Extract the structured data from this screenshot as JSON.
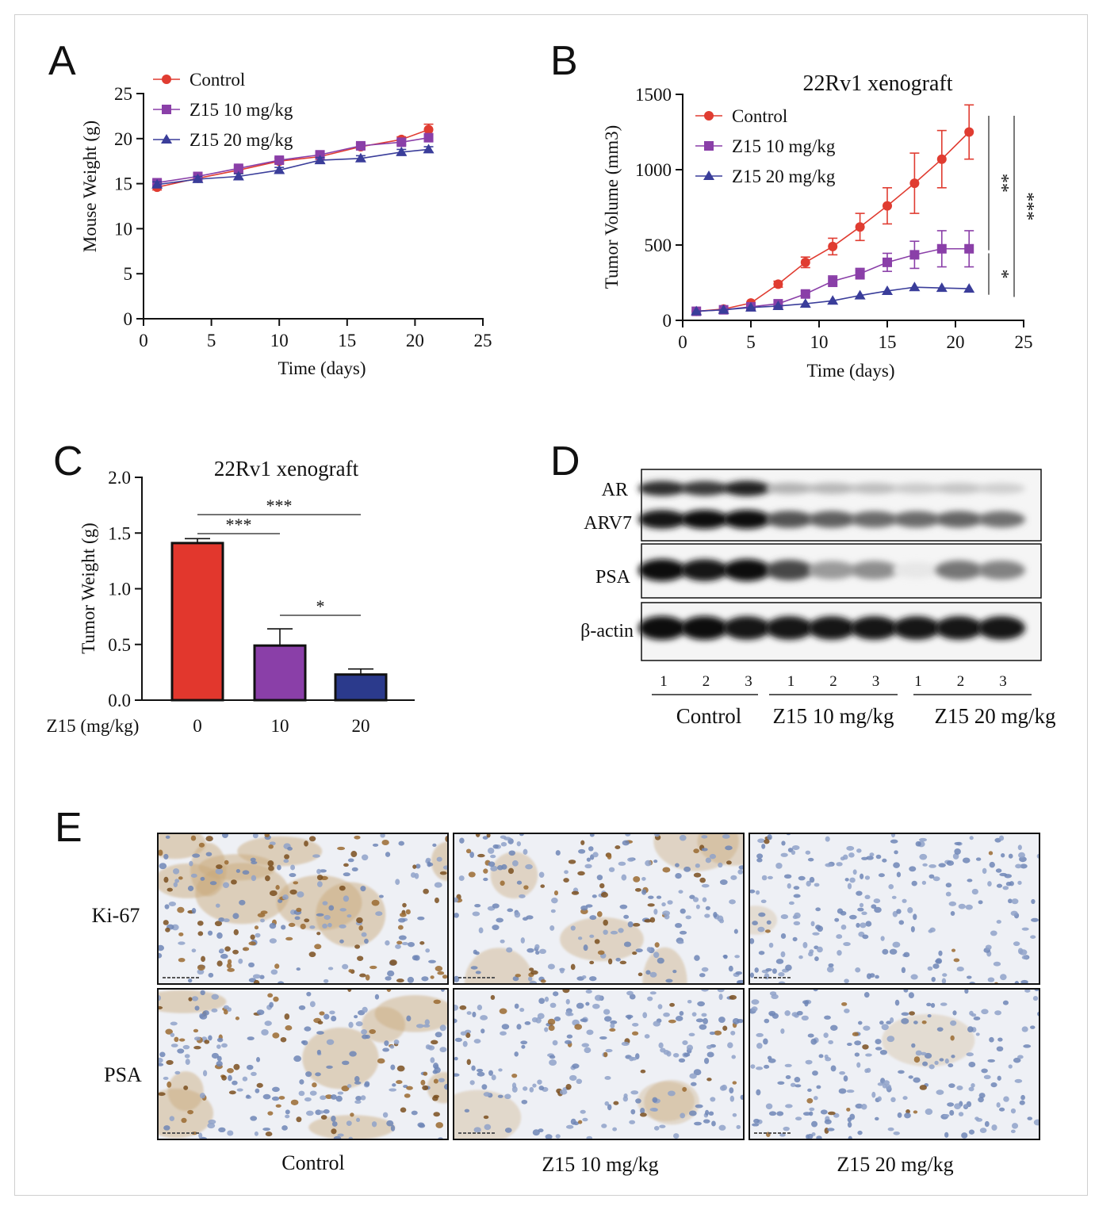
{
  "panel_letters": [
    "A",
    "B",
    "C",
    "D",
    "E"
  ],
  "colors": {
    "control": "#e03c31",
    "z10": "#8a3fa8",
    "z20": "#3a3d9a",
    "bar_control": "#e2372d",
    "bar_z10": "#8a3fa8",
    "bar_z20": "#2b3a8c"
  },
  "chart_data": [
    {
      "id": "A",
      "type": "line",
      "title": "",
      "xlabel": "Time (days)",
      "ylabel": "Mouse Weight (g)",
      "xlim": [
        0,
        25
      ],
      "ylim": [
        0,
        25
      ],
      "xticks": [
        0,
        5,
        10,
        15,
        20,
        25
      ],
      "yticks": [
        0,
        5,
        10,
        15,
        20,
        25
      ],
      "legend_position": "top-left",
      "series": [
        {
          "name": "Control",
          "marker": "circle",
          "color": "#e03c31",
          "x": [
            1,
            4,
            7,
            10,
            13,
            16,
            19,
            21
          ],
          "y": [
            14.6,
            15.6,
            16.5,
            17.5,
            18.0,
            19.1,
            19.9,
            21.0
          ],
          "err": [
            0.3,
            0.3,
            0.3,
            0.3,
            0.3,
            0.3,
            0.3,
            0.6
          ]
        },
        {
          "name": "Z15 10 mg/kg",
          "marker": "square",
          "color": "#8a3fa8",
          "x": [
            1,
            4,
            7,
            10,
            13,
            16,
            19,
            21
          ],
          "y": [
            15.1,
            15.8,
            16.7,
            17.6,
            18.2,
            19.2,
            19.6,
            20.1
          ],
          "err": [
            0.3,
            0.3,
            0.3,
            0.3,
            0.3,
            0.3,
            0.3,
            0.4
          ]
        },
        {
          "name": "Z15 20 mg/kg",
          "marker": "triangle",
          "color": "#3a3d9a",
          "x": [
            1,
            4,
            7,
            10,
            13,
            16,
            19,
            21
          ],
          "y": [
            14.9,
            15.5,
            15.8,
            16.5,
            17.6,
            17.8,
            18.5,
            18.8
          ],
          "err": [
            0.3,
            0.3,
            0.3,
            0.3,
            0.3,
            0.3,
            0.3,
            0.3
          ]
        }
      ]
    },
    {
      "id": "B",
      "type": "line",
      "title": "22Rv1 xenograft",
      "xlabel": "Time (days)",
      "ylabel": "Tumor Volume (mm3)",
      "xlim": [
        0,
        25
      ],
      "ylim": [
        0,
        1500
      ],
      "xticks": [
        0,
        5,
        10,
        15,
        20,
        25
      ],
      "yticks": [
        0,
        500,
        1000,
        1500
      ],
      "legend_position": "top-left",
      "significance": [
        {
          "label": "**",
          "from": "Control",
          "to": "Z15 10 mg/kg"
        },
        {
          "label": "*",
          "from": "Z15 10 mg/kg",
          "to": "Z15 20 mg/kg"
        },
        {
          "label": "***",
          "from": "Control",
          "to": "Z15 20 mg/kg"
        }
      ],
      "series": [
        {
          "name": "Control",
          "marker": "circle",
          "color": "#e03c31",
          "x": [
            1,
            3,
            5,
            7,
            9,
            11,
            13,
            15,
            17,
            19,
            21
          ],
          "y": [
            60,
            75,
            115,
            240,
            385,
            490,
            620,
            760,
            910,
            1070,
            1250
          ],
          "err": [
            0,
            0,
            0,
            20,
            35,
            55,
            90,
            120,
            200,
            190,
            180
          ]
        },
        {
          "name": "Z15 10 mg/kg",
          "marker": "square",
          "color": "#8a3fa8",
          "x": [
            1,
            3,
            5,
            7,
            9,
            11,
            13,
            15,
            17,
            19,
            21
          ],
          "y": [
            60,
            70,
            90,
            110,
            175,
            260,
            310,
            385,
            435,
            475,
            475
          ],
          "err": [
            0,
            0,
            0,
            0,
            20,
            35,
            35,
            60,
            90,
            120,
            120
          ]
        },
        {
          "name": "Z15 20 mg/kg",
          "marker": "triangle",
          "color": "#3a3d9a",
          "x": [
            1,
            3,
            5,
            7,
            9,
            11,
            13,
            15,
            17,
            19,
            21
          ],
          "y": [
            60,
            70,
            85,
            95,
            110,
            130,
            165,
            195,
            220,
            215,
            210
          ],
          "err": [
            0,
            0,
            0,
            0,
            0,
            0,
            0,
            0,
            0,
            0,
            0
          ]
        }
      ]
    },
    {
      "id": "C",
      "type": "bar",
      "title": "22Rv1 xenograft",
      "xlabel": "Z15 (mg/kg)",
      "ylabel": "Tumor Weight (g)",
      "categories": [
        "0",
        "10",
        "20"
      ],
      "values": [
        1.41,
        0.49,
        0.23
      ],
      "errors": [
        0.04,
        0.15,
        0.05
      ],
      "bar_colors": [
        "#e2372d",
        "#8a3fa8",
        "#2b3a8c"
      ],
      "ylim": [
        0,
        2.0
      ],
      "yticks": [
        "0.0",
        "0.5",
        "1.0",
        "1.5",
        "2.0"
      ],
      "significance": [
        {
          "label": "***",
          "from": 0,
          "to": 2
        },
        {
          "label": "***",
          "from": 0,
          "to": 1
        },
        {
          "label": "*",
          "from": 1,
          "to": 2
        }
      ]
    }
  ],
  "blot": {
    "row_labels": [
      "AR",
      "ARV7",
      "PSA",
      "β-actin"
    ],
    "lane_numbers": [
      "1",
      "2",
      "3",
      "1",
      "2",
      "3",
      "1",
      "2",
      "3"
    ],
    "groups": [
      "Control",
      "Z15 10 mg/kg",
      "Z15 20 mg/kg"
    ],
    "intensity": {
      "AR": [
        0.85,
        0.8,
        0.9,
        0.3,
        0.28,
        0.25,
        0.2,
        0.22,
        0.18
      ],
      "ARV7": [
        0.95,
        1.0,
        1.0,
        0.7,
        0.65,
        0.6,
        0.6,
        0.62,
        0.58
      ],
      "PSA": [
        1.0,
        0.95,
        1.0,
        0.75,
        0.4,
        0.45,
        0.08,
        0.55,
        0.5
      ],
      "actin": [
        1.0,
        1.0,
        0.95,
        0.95,
        0.95,
        0.95,
        0.95,
        0.95,
        0.95
      ]
    }
  },
  "ihc": {
    "row_labels": [
      "Ki-67",
      "PSA"
    ],
    "column_labels": [
      "Control",
      "Z15 10 mg/kg",
      "Z15 20 mg/kg"
    ],
    "brown_staining_level": [
      [
        0.85,
        0.55,
        0.1
      ],
      [
        0.75,
        0.3,
        0.1
      ]
    ]
  }
}
